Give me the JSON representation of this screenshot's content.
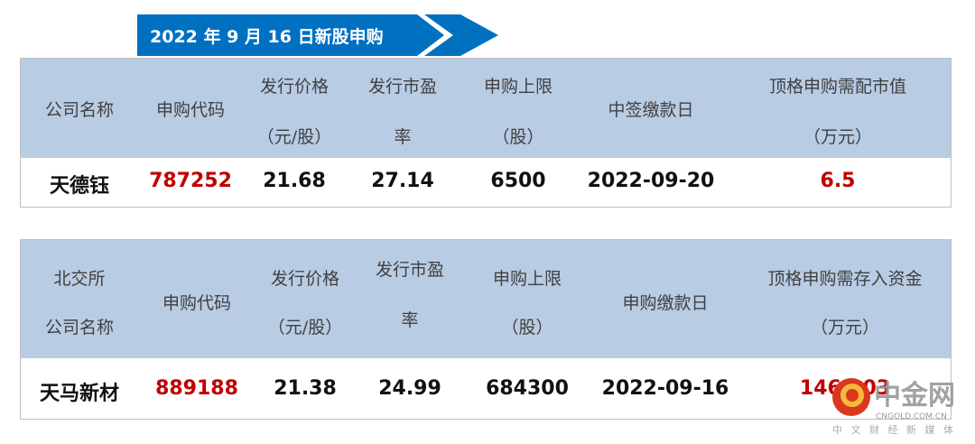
{
  "banner": {
    "title": "2022 年 9 月 16 日新股申购",
    "color": "#0070c0"
  },
  "table1": {
    "headers": [
      "公司名称",
      "申购代码",
      "发行价格",
      "（元/股）",
      "发行市盈",
      "率",
      "申购上限",
      "（股）",
      "中签缴款日",
      "顶格申购需配市值",
      "（万元）"
    ],
    "row": {
      "name": "天德钰",
      "code": "787252",
      "price": "21.68",
      "pe": "27.14",
      "limit": "6500",
      "date": "2022-09-20",
      "value": "6.5"
    }
  },
  "table2": {
    "headers": [
      "北交所",
      "公司名称",
      "申购代码",
      "发行价格",
      "（元/股）",
      "发行市盈",
      "率",
      "申购上限",
      "（股）",
      "申购缴款日",
      "顶格申购需存入资金",
      "（万元）"
    ],
    "row": {
      "name": "天马新材",
      "code": "889188",
      "price": "21.38",
      "pe": "24.99",
      "limit": "684300",
      "date": "2022-09-16",
      "value": "1463.03"
    }
  },
  "watermark": {
    "brand": "中金网",
    "domain": "CNGOLD.COM.CN",
    "slogan": "中 文 财 经 新 媒 体"
  },
  "colors": {
    "header_bg": "#b8cce4",
    "accent_red": "#c00000"
  }
}
